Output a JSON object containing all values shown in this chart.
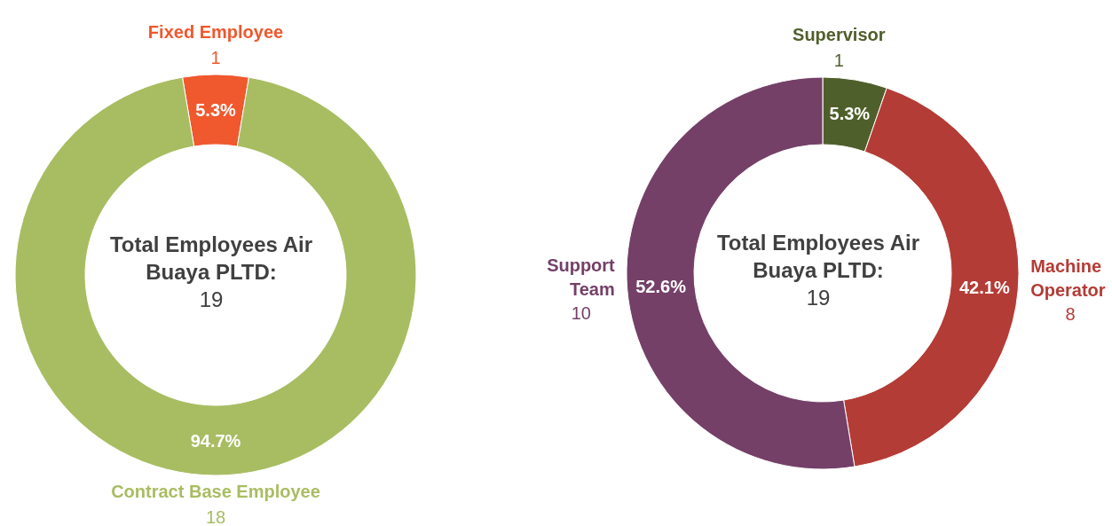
{
  "chart_data": [
    {
      "type": "donut",
      "title": "Total Employees Air Buaya PLTD:",
      "annotations": [
        "19",
        {
          "text": "1",
          "x": "Fixed Employee"
        },
        {
          "text": "18",
          "x": "Contract Base Employee"
        }
      ],
      "categories": [
        "Fixed Employee",
        "Contract Base Employee"
      ],
      "values": [
        5.3,
        94.7
      ],
      "colors": [
        "#f0582d",
        "#a8bd62"
      ],
      "value_labels": [
        "5.3%",
        "94.7%"
      ],
      "legend": false
    },
    {
      "type": "donut",
      "title": "Total Employees Air Buaya PLTD:",
      "annotations": [
        "19",
        {
          "text": "1",
          "x": "Supervisor"
        },
        {
          "text": "8",
          "x": "Machine Operator"
        },
        {
          "text": "10",
          "x": "Support Team"
        }
      ],
      "categories": [
        "Supervisor",
        "Machine Operator",
        "Support Team"
      ],
      "values": [
        5.3,
        42.1,
        52.6
      ],
      "colors": [
        "#4f5f2b",
        "#b43c36",
        "#744068"
      ],
      "value_labels": [
        "5.3%",
        "42.1%",
        "52.6%"
      ],
      "legend": false
    }
  ]
}
